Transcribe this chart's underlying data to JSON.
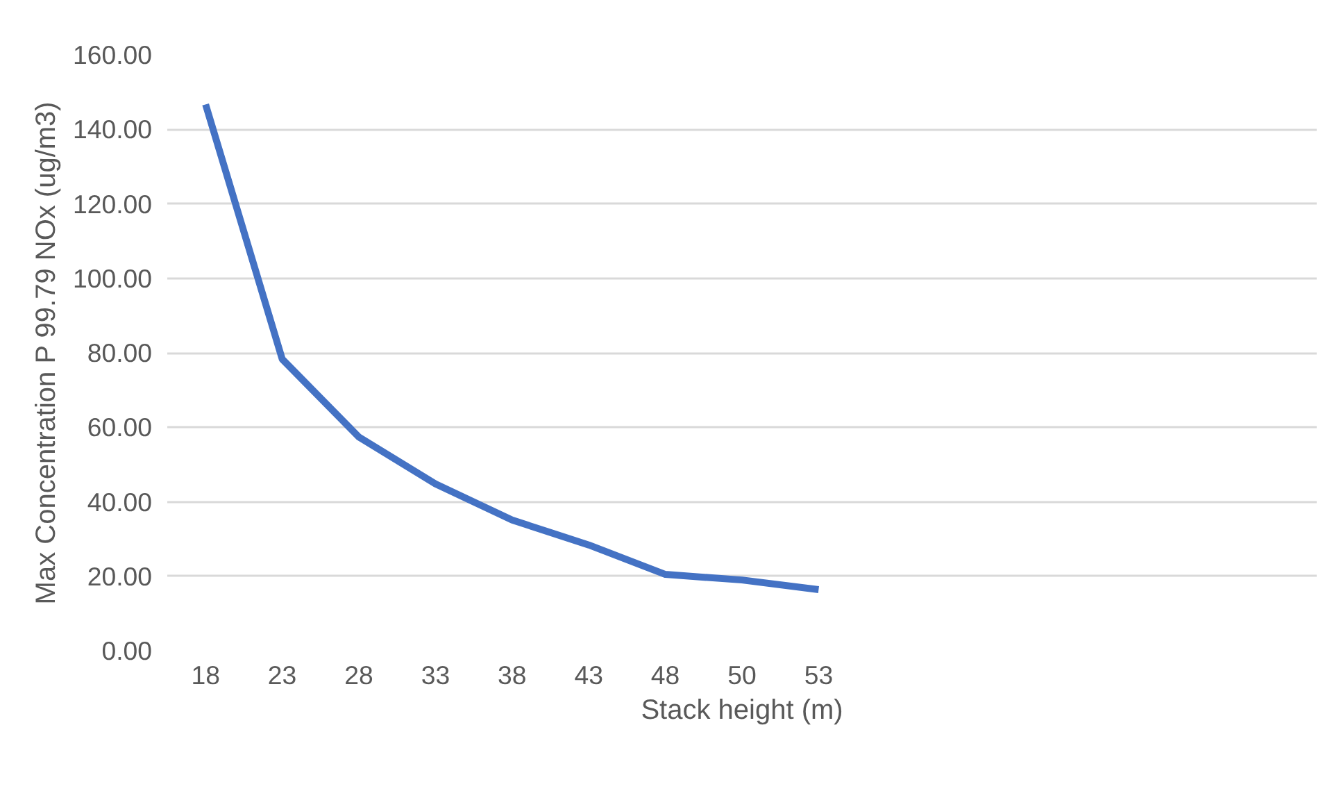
{
  "chart_data": {
    "type": "line",
    "xlabel": "Stack height (m)",
    "ylabel": "Max Concentration P 99.79 NOx (ug/m3)",
    "categories": [
      "18",
      "23",
      "28",
      "33",
      "38",
      "43",
      "48",
      "50",
      "53",
      null,
      null,
      null,
      null,
      null,
      null
    ],
    "series": [
      {
        "color": "#4472c4",
        "values": [
          146.7,
          78.3,
          57.4,
          44.8,
          35.1,
          28.4,
          20.5,
          19.0,
          16.4,
          null,
          null,
          null,
          null,
          null,
          null
        ]
      }
    ],
    "ylim": [
      0,
      160
    ],
    "yticks": [
      {
        "value": 0,
        "label": "0.00"
      },
      {
        "value": 20,
        "label": "20.00"
      },
      {
        "value": 40,
        "label": "40.00"
      },
      {
        "value": 60,
        "label": "60.00"
      },
      {
        "value": 80,
        "label": "80.00"
      },
      {
        "value": 100,
        "label": "100.00"
      },
      {
        "value": 120,
        "label": "120.00"
      },
      {
        "value": 140,
        "label": "140.00"
      },
      {
        "value": 160,
        "label": "160.00"
      }
    ],
    "grid": "y",
    "marker": "none",
    "line_style": "solid"
  }
}
